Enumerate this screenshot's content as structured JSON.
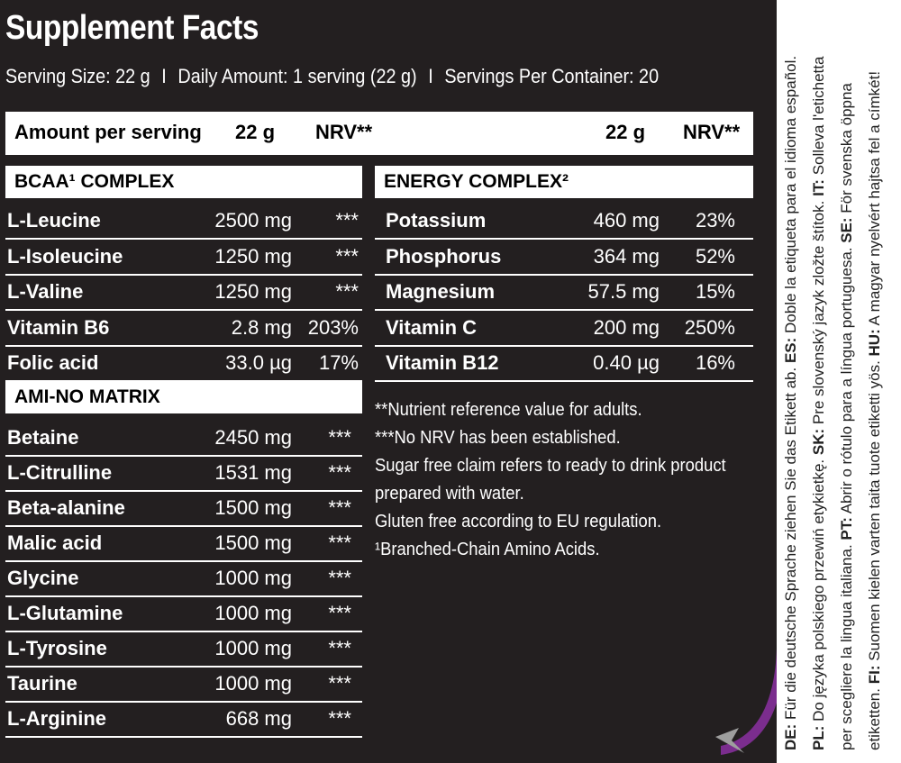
{
  "title": "Supplement Facts",
  "serving": {
    "size": "Serving Size: 22 g",
    "daily": "Daily Amount: 1 serving (22 g)",
    "per_container": "Servings Per Container: 20",
    "sep": "I"
  },
  "header": {
    "label": "Amount per serving",
    "amount_left": "22 g",
    "nrv_left": "NRV**",
    "amount_right": "22 g",
    "nrv_right": "NRV**"
  },
  "bcaa": {
    "title": "BCAA¹ COMPLEX",
    "rows": [
      {
        "name": "L-Leucine",
        "amount": "2500 mg",
        "nrv": "***"
      },
      {
        "name": "L-Isoleucine",
        "amount": "1250 mg",
        "nrv": "***"
      },
      {
        "name": "L-Valine",
        "amount": "1250 mg",
        "nrv": "***"
      },
      {
        "name": "Vitamin B6",
        "amount": "2.8 mg",
        "nrv": "203%"
      },
      {
        "name": "Folic acid",
        "amount": "33.0 µg",
        "nrv": "17%"
      }
    ]
  },
  "amino": {
    "title": "AMI-NO MATRIX",
    "rows": [
      {
        "name": "Betaine",
        "amount": "2450 mg",
        "nrv": "***"
      },
      {
        "name": "L-Citrulline",
        "amount": "1531 mg",
        "nrv": "***"
      },
      {
        "name": "Beta-alanine",
        "amount": "1500 mg",
        "nrv": "***"
      },
      {
        "name": "Malic acid",
        "amount": "1500 mg",
        "nrv": "***"
      },
      {
        "name": "Glycine",
        "amount": "1000 mg",
        "nrv": "***"
      },
      {
        "name": "L-Glutamine",
        "amount": "1000 mg",
        "nrv": "***"
      },
      {
        "name": "L-Tyrosine",
        "amount": "1000 mg",
        "nrv": "***"
      },
      {
        "name": "Taurine",
        "amount": "1000 mg",
        "nrv": "***"
      },
      {
        "name": "L-Arginine",
        "amount": "668 mg",
        "nrv": "***"
      }
    ]
  },
  "energy": {
    "title": "ENERGY COMPLEX²",
    "rows": [
      {
        "name": "Potassium",
        "amount": "460 mg",
        "nrv": "23%"
      },
      {
        "name": "Phosphorus",
        "amount": "364 mg",
        "nrv": "52%"
      },
      {
        "name": "Magnesium",
        "amount": "57.5 mg",
        "nrv": "15%"
      },
      {
        "name": "Vitamin C",
        "amount": "200 mg",
        "nrv": "250%"
      },
      {
        "name": "Vitamin B12",
        "amount": "0.40 µg",
        "nrv": "16%"
      }
    ]
  },
  "notes": [
    "**Nutrient reference value for adults.",
    "***No NRV has been established.",
    "Sugar free claim refers to ready to drink product",
    "prepared with water.",
    "Gluten free according to EU regulation.",
    "¹Branched-Chain Amino Acids."
  ],
  "side_text": [
    {
      "parts": [
        {
          "code": "DE:",
          "text": " Für die deutsche Sprache ziehen Sie das Etikett ab. "
        },
        {
          "code": "ES:",
          "text": " Doble la etiqueta para el idioma español."
        }
      ]
    },
    {
      "parts": [
        {
          "code": "PL:",
          "text": " Do języka polskiego przewiń etykietkę. "
        },
        {
          "code": "SK:",
          "text": " Pre slovenský jazyk zložte štítok. "
        },
        {
          "code": "IT:",
          "text": " Solleva l'etichetta"
        }
      ]
    },
    {
      "parts": [
        {
          "code": "",
          "text": "per scegliere la lingua italiana. "
        },
        {
          "code": "PT:",
          "text": " Abrir o rótulo para a língua portuguesa. "
        },
        {
          "code": "SE:",
          "text": " För svenska öppna"
        }
      ]
    },
    {
      "parts": [
        {
          "code": "",
          "text": "etiketten. "
        },
        {
          "code": "FI:",
          "text": " Suomen kielen varten taita tuote etiketti yös. "
        },
        {
          "code": "HU:",
          "text": " A magyar nyelvért hajtsa fel a címkét!"
        }
      ]
    }
  ],
  "colors": {
    "background": "#231f20",
    "panel": "#ffffff",
    "arrow": "#7b2d8e"
  }
}
